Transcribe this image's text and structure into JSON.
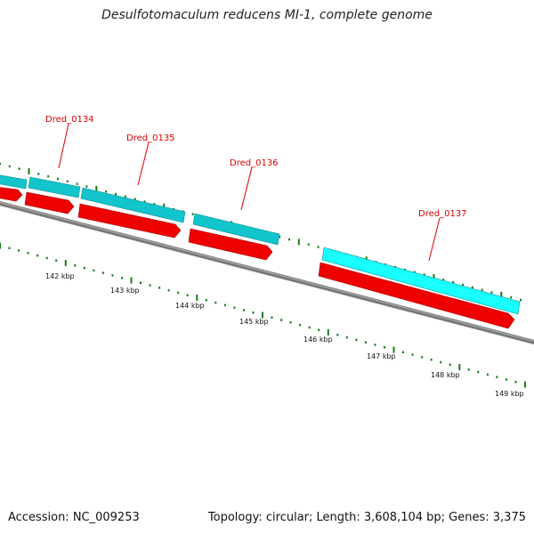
{
  "title": "Desulfotomaculum reducens MI-1, complete genome",
  "footer": {
    "accession": "Accession: NC_009253",
    "summary": "Topology: circular; Length: 3,608,104 bp; Genes: 3,375"
  },
  "colors": {
    "backbone": "#7a7a7a",
    "cds": "#ee0000",
    "gene": "#12c4cc",
    "gene_highlight": "#19ffff",
    "tick": "#1a7a1a",
    "gene_label": "#dd0000"
  },
  "scale": {
    "labels": [
      "142 kbp",
      "143 kbp",
      "144 kbp",
      "145 kbp",
      "146 kbp",
      "147 kbp",
      "148 kbp",
      "149 kbp"
    ]
  },
  "genes": [
    {
      "label": "Dred_0134"
    },
    {
      "label": "Dred_0135"
    },
    {
      "label": "Dred_0136"
    },
    {
      "label": "Dred_0137"
    }
  ]
}
